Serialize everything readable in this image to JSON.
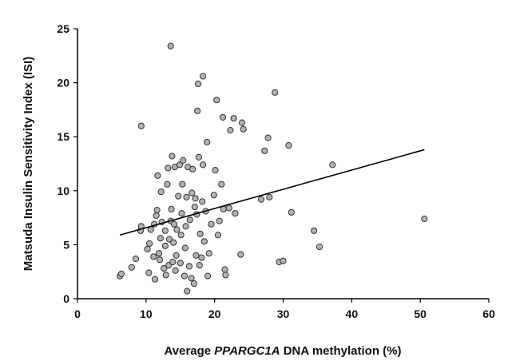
{
  "chart_data": {
    "type": "scatter",
    "title": "",
    "xlabel": {
      "prefix": "Average ",
      "gene": "PPARGC1A",
      "suffix": " DNA methylation (%)"
    },
    "ylabel": "Matsuda Insulin Sensitivity Index (ISI)",
    "xlim": [
      0,
      60
    ],
    "ylim": [
      0,
      25
    ],
    "xticks": [
      "0",
      "10",
      "20",
      "30",
      "40",
      "50",
      "60"
    ],
    "yticks": [
      "0",
      "5",
      "10",
      "15",
      "20",
      "25"
    ],
    "grid": false,
    "legend": "none",
    "colors": {
      "marker_fill": "#b3b3b3",
      "marker_edge": "#333333",
      "trend_line": "#000000",
      "axis": "#000000"
    },
    "trend_line": {
      "x": [
        6.2,
        50.6
      ],
      "y": [
        5.9,
        13.8
      ]
    },
    "points": [
      {
        "x": 6.2,
        "y": 2.1
      },
      {
        "x": 6.4,
        "y": 2.3
      },
      {
        "x": 7.9,
        "y": 2.9
      },
      {
        "x": 8.5,
        "y": 3.7
      },
      {
        "x": 9.2,
        "y": 6.3
      },
      {
        "x": 9.3,
        "y": 6.7
      },
      {
        "x": 9.3,
        "y": 16.0
      },
      {
        "x": 10.2,
        "y": 4.6
      },
      {
        "x": 10.4,
        "y": 2.4
      },
      {
        "x": 10.5,
        "y": 5.1
      },
      {
        "x": 10.7,
        "y": 6.4
      },
      {
        "x": 11.1,
        "y": 3.9
      },
      {
        "x": 11.2,
        "y": 6.9
      },
      {
        "x": 11.3,
        "y": 1.8
      },
      {
        "x": 11.5,
        "y": 7.7
      },
      {
        "x": 11.6,
        "y": 8.2
      },
      {
        "x": 11.7,
        "y": 11.4
      },
      {
        "x": 11.9,
        "y": 4.2
      },
      {
        "x": 12.0,
        "y": 3.6
      },
      {
        "x": 12.1,
        "y": 5.6
      },
      {
        "x": 12.2,
        "y": 9.9
      },
      {
        "x": 12.3,
        "y": 7.1
      },
      {
        "x": 12.6,
        "y": 2.8
      },
      {
        "x": 12.8,
        "y": 4.9
      },
      {
        "x": 12.8,
        "y": 6.3
      },
      {
        "x": 12.9,
        "y": 2.2
      },
      {
        "x": 13.1,
        "y": 10.6
      },
      {
        "x": 13.2,
        "y": 12.1
      },
      {
        "x": 13.3,
        "y": 3.1
      },
      {
        "x": 13.4,
        "y": 5.5
      },
      {
        "x": 13.6,
        "y": 7.2
      },
      {
        "x": 13.7,
        "y": 8.3
      },
      {
        "x": 13.6,
        "y": 23.4
      },
      {
        "x": 13.8,
        "y": 13.2
      },
      {
        "x": 13.9,
        "y": 3.4
      },
      {
        "x": 14.0,
        "y": 5.2
      },
      {
        "x": 14.1,
        "y": 6.9
      },
      {
        "x": 14.2,
        "y": 12.2
      },
      {
        "x": 14.3,
        "y": 2.6
      },
      {
        "x": 14.4,
        "y": 4.0
      },
      {
        "x": 14.5,
        "y": 6.4
      },
      {
        "x": 14.7,
        "y": 9.5
      },
      {
        "x": 14.9,
        "y": 12.4
      },
      {
        "x": 15.0,
        "y": 3.3
      },
      {
        "x": 15.1,
        "y": 5.9
      },
      {
        "x": 15.2,
        "y": 7.9
      },
      {
        "x": 15.3,
        "y": 10.6
      },
      {
        "x": 15.4,
        "y": 12.8
      },
      {
        "x": 15.6,
        "y": 2.1
      },
      {
        "x": 15.7,
        "y": 4.7
      },
      {
        "x": 15.8,
        "y": 6.7
      },
      {
        "x": 15.9,
        "y": 9.4
      },
      {
        "x": 16.0,
        "y": 0.7
      },
      {
        "x": 16.1,
        "y": 12.2
      },
      {
        "x": 16.3,
        "y": 3.0
      },
      {
        "x": 16.4,
        "y": 7.3
      },
      {
        "x": 16.6,
        "y": 1.9
      },
      {
        "x": 16.7,
        "y": 9.8
      },
      {
        "x": 16.8,
        "y": 12.0
      },
      {
        "x": 17.0,
        "y": 1.4
      },
      {
        "x": 17.1,
        "y": 8.5
      },
      {
        "x": 17.2,
        "y": 9.3
      },
      {
        "x": 17.3,
        "y": 4.0
      },
      {
        "x": 17.4,
        "y": 7.8
      },
      {
        "x": 17.5,
        "y": 17.4
      },
      {
        "x": 17.6,
        "y": 19.9
      },
      {
        "x": 17.7,
        "y": 13.1
      },
      {
        "x": 17.8,
        "y": 3.1
      },
      {
        "x": 17.9,
        "y": 6.0
      },
      {
        "x": 18.1,
        "y": 3.8
      },
      {
        "x": 18.2,
        "y": 9.0
      },
      {
        "x": 18.3,
        "y": 12.4
      },
      {
        "x": 18.3,
        "y": 20.6
      },
      {
        "x": 18.5,
        "y": 5.3
      },
      {
        "x": 18.7,
        "y": 8.1
      },
      {
        "x": 18.9,
        "y": 14.5
      },
      {
        "x": 19.0,
        "y": 2.1
      },
      {
        "x": 19.2,
        "y": 4.2
      },
      {
        "x": 19.5,
        "y": 6.9
      },
      {
        "x": 19.9,
        "y": 9.6
      },
      {
        "x": 20.1,
        "y": 11.9
      },
      {
        "x": 20.3,
        "y": 18.4
      },
      {
        "x": 20.5,
        "y": 5.9
      },
      {
        "x": 20.7,
        "y": 7.2
      },
      {
        "x": 21.0,
        "y": 10.6
      },
      {
        "x": 21.2,
        "y": 16.8
      },
      {
        "x": 21.3,
        "y": 8.3
      },
      {
        "x": 21.5,
        "y": 2.7
      },
      {
        "x": 21.6,
        "y": 2.2
      },
      {
        "x": 22.1,
        "y": 8.4
      },
      {
        "x": 22.3,
        "y": 15.6
      },
      {
        "x": 22.8,
        "y": 16.7
      },
      {
        "x": 23.0,
        "y": 7.9
      },
      {
        "x": 23.8,
        "y": 4.1
      },
      {
        "x": 24.0,
        "y": 16.3
      },
      {
        "x": 24.2,
        "y": 15.7
      },
      {
        "x": 26.8,
        "y": 9.2
      },
      {
        "x": 27.3,
        "y": 13.7
      },
      {
        "x": 27.8,
        "y": 14.9
      },
      {
        "x": 28.0,
        "y": 9.4
      },
      {
        "x": 28.8,
        "y": 19.1
      },
      {
        "x": 29.4,
        "y": 3.4
      },
      {
        "x": 30.0,
        "y": 3.5
      },
      {
        "x": 30.8,
        "y": 14.2
      },
      {
        "x": 31.2,
        "y": 8.0
      },
      {
        "x": 34.5,
        "y": 6.3
      },
      {
        "x": 35.3,
        "y": 4.8
      },
      {
        "x": 37.2,
        "y": 12.4
      },
      {
        "x": 50.6,
        "y": 7.4
      }
    ]
  }
}
